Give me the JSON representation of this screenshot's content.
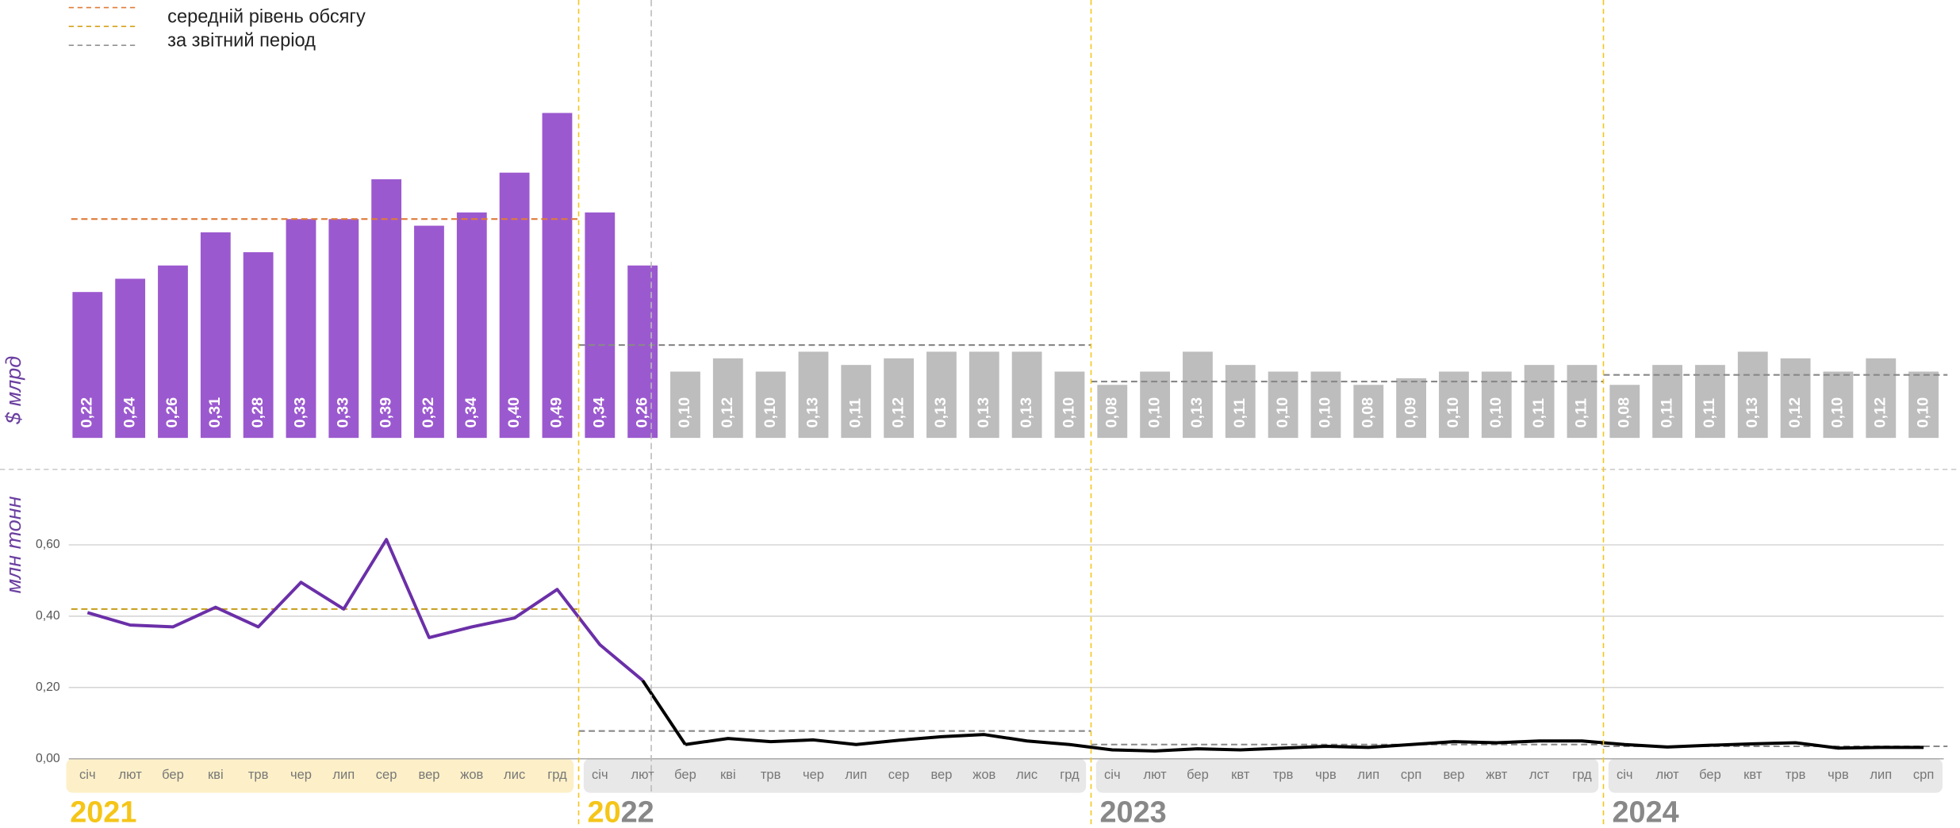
{
  "legend": {
    "labels": [
      "середній рівень обсягу",
      "за звітний період"
    ],
    "colors": [
      "#e07b39",
      "#d4a017",
      "#888888"
    ]
  },
  "years": [
    "2021",
    "2022",
    "2023",
    "2024"
  ],
  "chart_data": [
    {
      "type": "bar",
      "ylabel": "$ млрд",
      "values": [
        0.22,
        0.24,
        0.26,
        0.31,
        0.28,
        0.33,
        0.33,
        0.39,
        0.32,
        0.34,
        0.4,
        0.49,
        0.34,
        0.26,
        0.1,
        0.12,
        0.1,
        0.13,
        0.11,
        0.12,
        0.13,
        0.13,
        0.13,
        0.1,
        0.08,
        0.1,
        0.13,
        0.11,
        0.1,
        0.1,
        0.08,
        0.09,
        0.1,
        0.1,
        0.11,
        0.11,
        0.08,
        0.11,
        0.11,
        0.13,
        0.12,
        0.1,
        0.12,
        0.1
      ],
      "value_labels": [
        "0,22",
        "0,24",
        "0,26",
        "0,31",
        "0,28",
        "0,33",
        "0,33",
        "0,39",
        "0,32",
        "0,34",
        "0,40",
        "0,49",
        "0,34",
        "0,26",
        "0,10",
        "0,12",
        "0,10",
        "0,13",
        "0,11",
        "0,12",
        "0,13",
        "0,13",
        "0,13",
        "0,10",
        "0,08",
        "0,10",
        "0,13",
        "0,11",
        "0,10",
        "0,10",
        "0,08",
        "0,09",
        "0,10",
        "0,10",
        "0,11",
        "0,11",
        "0,08",
        "0,11",
        "0,11",
        "0,13",
        "0,12",
        "0,10",
        "0,12",
        "0,10"
      ],
      "colors": [
        "#9b59cf",
        "#9b59cf",
        "#9b59cf",
        "#9b59cf",
        "#9b59cf",
        "#9b59cf",
        "#9b59cf",
        "#9b59cf",
        "#9b59cf",
        "#9b59cf",
        "#9b59cf",
        "#9b59cf",
        "#9b59cf",
        "#9b59cf",
        "#bdbdbd",
        "#bdbdbd",
        "#bdbdbd",
        "#bdbdbd",
        "#bdbdbd",
        "#bdbdbd",
        "#bdbdbd",
        "#bdbdbd",
        "#bdbdbd",
        "#bdbdbd",
        "#bdbdbd",
        "#bdbdbd",
        "#bdbdbd",
        "#bdbdbd",
        "#bdbdbd",
        "#bdbdbd",
        "#bdbdbd",
        "#bdbdbd",
        "#bdbdbd",
        "#bdbdbd",
        "#bdbdbd",
        "#bdbdbd",
        "#bdbdbd",
        "#bdbdbd",
        "#bdbdbd",
        "#bdbdbd",
        "#bdbdbd",
        "#bdbdbd",
        "#bdbdbd",
        "#bdbdbd"
      ],
      "ylim": [
        0,
        0.5
      ],
      "averages": [
        {
          "value": 0.33,
          "color": "#e07b39"
        },
        {
          "value": 0.14,
          "color": "#888888"
        },
        {
          "value": 0.085,
          "color": "#888888"
        },
        {
          "value": 0.095,
          "color": "#888888"
        }
      ]
    },
    {
      "type": "line",
      "ylabel": "млн тонн",
      "categories": [
        "січ",
        "лют",
        "бер",
        "кві",
        "трв",
        "чер",
        "лип",
        "сер",
        "вер",
        "жов",
        "лис",
        "грд",
        "січ",
        "лют",
        "бер",
        "кві",
        "трв",
        "чер",
        "лип",
        "сер",
        "вер",
        "жов",
        "лис",
        "грд",
        "січ",
        "лют",
        "бер",
        "квт",
        "трв",
        "чрв",
        "лип",
        "срп",
        "вер",
        "жвт",
        "лст",
        "грд",
        "січ",
        "лют",
        "бер",
        "квт",
        "трв",
        "чрв",
        "лип",
        "срп"
      ],
      "values": [
        0.41,
        0.375,
        0.37,
        0.425,
        0.37,
        0.495,
        0.42,
        0.615,
        0.34,
        0.37,
        0.395,
        0.475,
        0.32,
        0.22,
        0.04,
        0.057,
        0.048,
        0.053,
        0.04,
        0.052,
        0.062,
        0.068,
        0.05,
        0.04,
        0.025,
        0.022,
        0.028,
        0.025,
        0.03,
        0.035,
        0.032,
        0.04,
        0.048,
        0.045,
        0.05,
        0.05,
        0.04,
        0.033,
        0.038,
        0.042,
        0.045,
        0.03,
        0.032,
        0.032
      ],
      "colors": [
        "#6b2fa8",
        "#6b2fa8",
        "#6b2fa8",
        "#6b2fa8",
        "#6b2fa8",
        "#6b2fa8",
        "#6b2fa8",
        "#6b2fa8",
        "#6b2fa8",
        "#6b2fa8",
        "#6b2fa8",
        "#6b2fa8",
        "#6b2fa8",
        "#6b2fa8",
        "#000000",
        "#000000",
        "#000000",
        "#000000",
        "#000000",
        "#000000",
        "#000000",
        "#000000",
        "#000000",
        "#000000",
        "#000000",
        "#000000",
        "#000000",
        "#000000",
        "#000000",
        "#000000",
        "#000000",
        "#000000",
        "#000000",
        "#000000",
        "#000000",
        "#000000",
        "#000000",
        "#000000",
        "#000000",
        "#000000",
        "#000000",
        "#000000",
        "#000000",
        "#000000"
      ],
      "ylim": [
        0,
        0.75
      ],
      "yticks": [
        {
          "value": 0,
          "label": "0,00"
        },
        {
          "value": 0.2,
          "label": "0,20"
        },
        {
          "value": 0.4,
          "label": "0,40"
        },
        {
          "value": 0.6,
          "label": "0,60"
        }
      ],
      "grid": true,
      "averages": [
        {
          "value": 0.42,
          "color": "#c9a227"
        },
        {
          "value": 0.078,
          "color": "#888888"
        },
        {
          "value": 0.04,
          "color": "#888888"
        },
        {
          "value": 0.035,
          "color": "#888888"
        }
      ]
    }
  ]
}
